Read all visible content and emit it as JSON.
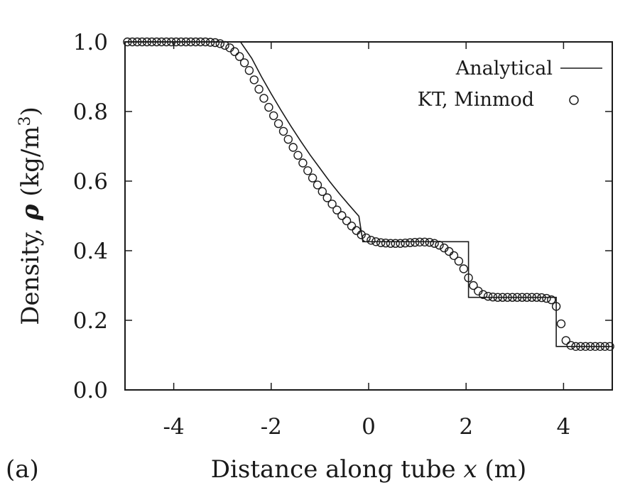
{
  "chart_data": {
    "type": "scatter",
    "title": "",
    "panel_label": "(a)",
    "xlabel_prefix": "Distance along tube ",
    "xlabel_var": "x",
    "xlabel_suffix": " (m)",
    "ylabel_prefix": "Density, ",
    "ylabel_var": "ρ",
    "ylabel_unit": " (kg/m",
    "ylabel_exp": "3",
    "ylabel_close": ")",
    "xlim": [
      -5,
      5
    ],
    "ylim": [
      0,
      1
    ],
    "xticks": [
      -4,
      -2,
      0,
      2,
      4
    ],
    "xtick_labels": [
      "-4",
      "-2",
      "0",
      "2",
      "4"
    ],
    "yticks": [
      0,
      0.2,
      0.4,
      0.6,
      0.8,
      1.0
    ],
    "ytick_labels": [
      "0.0",
      "0.2",
      "0.4",
      "0.6",
      "0.8",
      "1.0"
    ],
    "grid": false,
    "legend_position": "top-right",
    "series": [
      {
        "name": "Analytical",
        "style": "line",
        "x": [
          -5,
          -2.63,
          -2.4,
          -2.2,
          -2.0,
          -1.8,
          -1.6,
          -1.4,
          -1.2,
          -1.0,
          -0.8,
          -0.6,
          -0.4,
          -0.2,
          -0.12,
          2.05,
          2.05,
          3.85,
          3.85,
          5
        ],
        "y": [
          1.0,
          1.0,
          0.953,
          0.9,
          0.851,
          0.804,
          0.759,
          0.716,
          0.675,
          0.637,
          0.599,
          0.564,
          0.531,
          0.499,
          0.426,
          0.426,
          0.266,
          0.266,
          0.125,
          0.125
        ]
      },
      {
        "name": "KT, Minmod",
        "style": "markers",
        "marker": "open-circle",
        "x": [
          -4.95,
          -4.85,
          -4.75,
          -4.65,
          -4.55,
          -4.45,
          -4.35,
          -4.25,
          -4.15,
          -4.05,
          -3.95,
          -3.85,
          -3.75,
          -3.65,
          -3.55,
          -3.45,
          -3.35,
          -3.25,
          -3.15,
          -3.05,
          -2.95,
          -2.85,
          -2.75,
          -2.65,
          -2.55,
          -2.45,
          -2.35,
          -2.25,
          -2.15,
          -2.05,
          -1.95,
          -1.85,
          -1.75,
          -1.65,
          -1.55,
          -1.45,
          -1.35,
          -1.25,
          -1.15,
          -1.05,
          -0.95,
          -0.85,
          -0.75,
          -0.65,
          -0.55,
          -0.45,
          -0.35,
          -0.25,
          -0.15,
          -0.05,
          0.05,
          0.15,
          0.25,
          0.35,
          0.45,
          0.55,
          0.65,
          0.75,
          0.85,
          0.95,
          1.05,
          1.15,
          1.25,
          1.35,
          1.45,
          1.55,
          1.65,
          1.75,
          1.85,
          1.95,
          2.05,
          2.15,
          2.25,
          2.35,
          2.45,
          2.55,
          2.65,
          2.75,
          2.85,
          2.95,
          3.05,
          3.15,
          3.25,
          3.35,
          3.45,
          3.55,
          3.65,
          3.75,
          3.85,
          3.95,
          4.05,
          4.15,
          4.25,
          4.35,
          4.45,
          4.55,
          4.65,
          4.75,
          4.85,
          4.95
        ],
        "y": [
          1.0,
          1.0,
          1.0,
          1.0,
          1.0,
          1.0,
          1.0,
          1.0,
          1.0,
          1.0,
          1.0,
          1.0,
          1.0,
          1.0,
          1.0,
          1.0,
          1.0,
          0.999,
          0.998,
          0.995,
          0.99,
          0.983,
          0.972,
          0.958,
          0.94,
          0.918,
          0.891,
          0.864,
          0.838,
          0.812,
          0.788,
          0.765,
          0.743,
          0.72,
          0.697,
          0.674,
          0.652,
          0.63,
          0.609,
          0.589,
          0.57,
          0.552,
          0.534,
          0.517,
          0.501,
          0.486,
          0.471,
          0.458,
          0.446,
          0.437,
          0.43,
          0.426,
          0.423,
          0.422,
          0.421,
          0.421,
          0.421,
          0.422,
          0.423,
          0.424,
          0.425,
          0.425,
          0.424,
          0.421,
          0.416,
          0.408,
          0.398,
          0.386,
          0.37,
          0.348,
          0.322,
          0.3,
          0.284,
          0.274,
          0.269,
          0.267,
          0.266,
          0.266,
          0.266,
          0.266,
          0.266,
          0.266,
          0.266,
          0.266,
          0.266,
          0.265,
          0.263,
          0.259,
          0.24,
          0.19,
          0.142,
          0.128,
          0.125,
          0.125,
          0.125,
          0.125,
          0.125,
          0.125,
          0.125,
          0.125
        ]
      }
    ]
  }
}
